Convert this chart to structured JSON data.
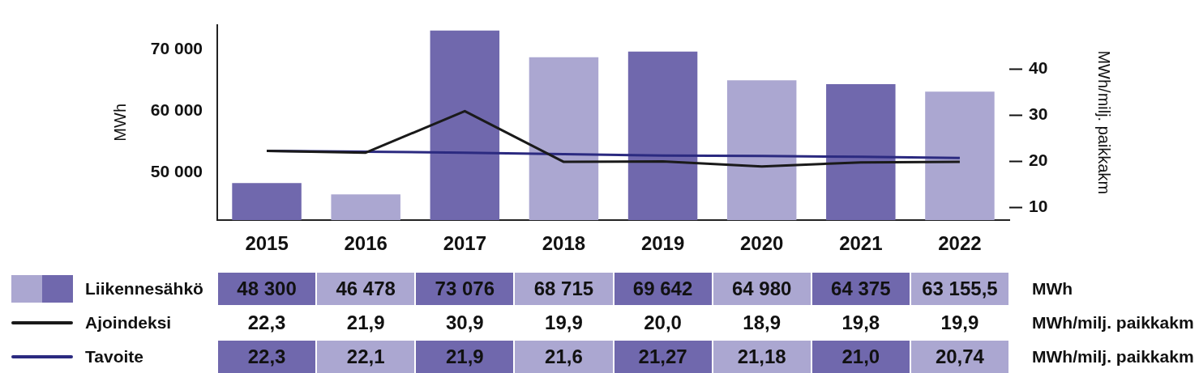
{
  "chart_data": {
    "type": "bar",
    "ylabel": "MWh",
    "y2label": "MWh/milj. paikkakm",
    "categories": [
      "2015",
      "2016",
      "2017",
      "2018",
      "2019",
      "2020",
      "2021",
      "2022"
    ],
    "ylim": [
      42300,
      74000
    ],
    "yticks": [
      {
        "value": 50000,
        "label": "50 000"
      },
      {
        "value": 60000,
        "label": "60 000"
      },
      {
        "value": 70000,
        "label": "70 000"
      }
    ],
    "y2lim": [
      7.3,
      49.6
    ],
    "y2ticks": [
      10,
      20,
      30,
      40
    ],
    "grid": false,
    "legend": "bottom",
    "annotations": [
      "MWh",
      "MWh/milj. paikkakm",
      "MWh/milj. paikkakm"
    ],
    "series": [
      {
        "name": "Liikennesähkö",
        "colors": [
          "#7068ad",
          "#aba7d1",
          "#7068ad",
          "#aba7d1",
          "#7068ad",
          "#aba7d1",
          "#7068ad",
          "#aba7d1"
        ],
        "values": [
          48300,
          46478,
          73076,
          68715,
          69642,
          64980,
          64375,
          63155.5
        ],
        "value_labels": [
          "48 300",
          "46 478",
          "73 076",
          "68 715",
          "69 642",
          "64 980",
          "64 375",
          "63 155,5"
        ]
      },
      {
        "name": "Ajoindeksi",
        "type": "line",
        "axis": "y2",
        "color": "#1a1a1a",
        "values": [
          22.3,
          21.9,
          30.9,
          19.9,
          20.0,
          18.9,
          19.8,
          19.9
        ],
        "value_labels": [
          "22,3",
          "21,9",
          "30,9",
          "19,9",
          "20,0",
          "18,9",
          "19,8",
          "19,9"
        ]
      },
      {
        "name": "Tavoite",
        "type": "line",
        "axis": "y2",
        "color": "#2b2a80",
        "values": [
          22.3,
          22.1,
          21.9,
          21.6,
          21.27,
          21.18,
          21.0,
          20.74
        ],
        "value_labels": [
          "22,3",
          "22,1",
          "21,9",
          "21,6",
          "21,27",
          "21,18",
          "21,0",
          "20,74"
        ]
      }
    ]
  }
}
